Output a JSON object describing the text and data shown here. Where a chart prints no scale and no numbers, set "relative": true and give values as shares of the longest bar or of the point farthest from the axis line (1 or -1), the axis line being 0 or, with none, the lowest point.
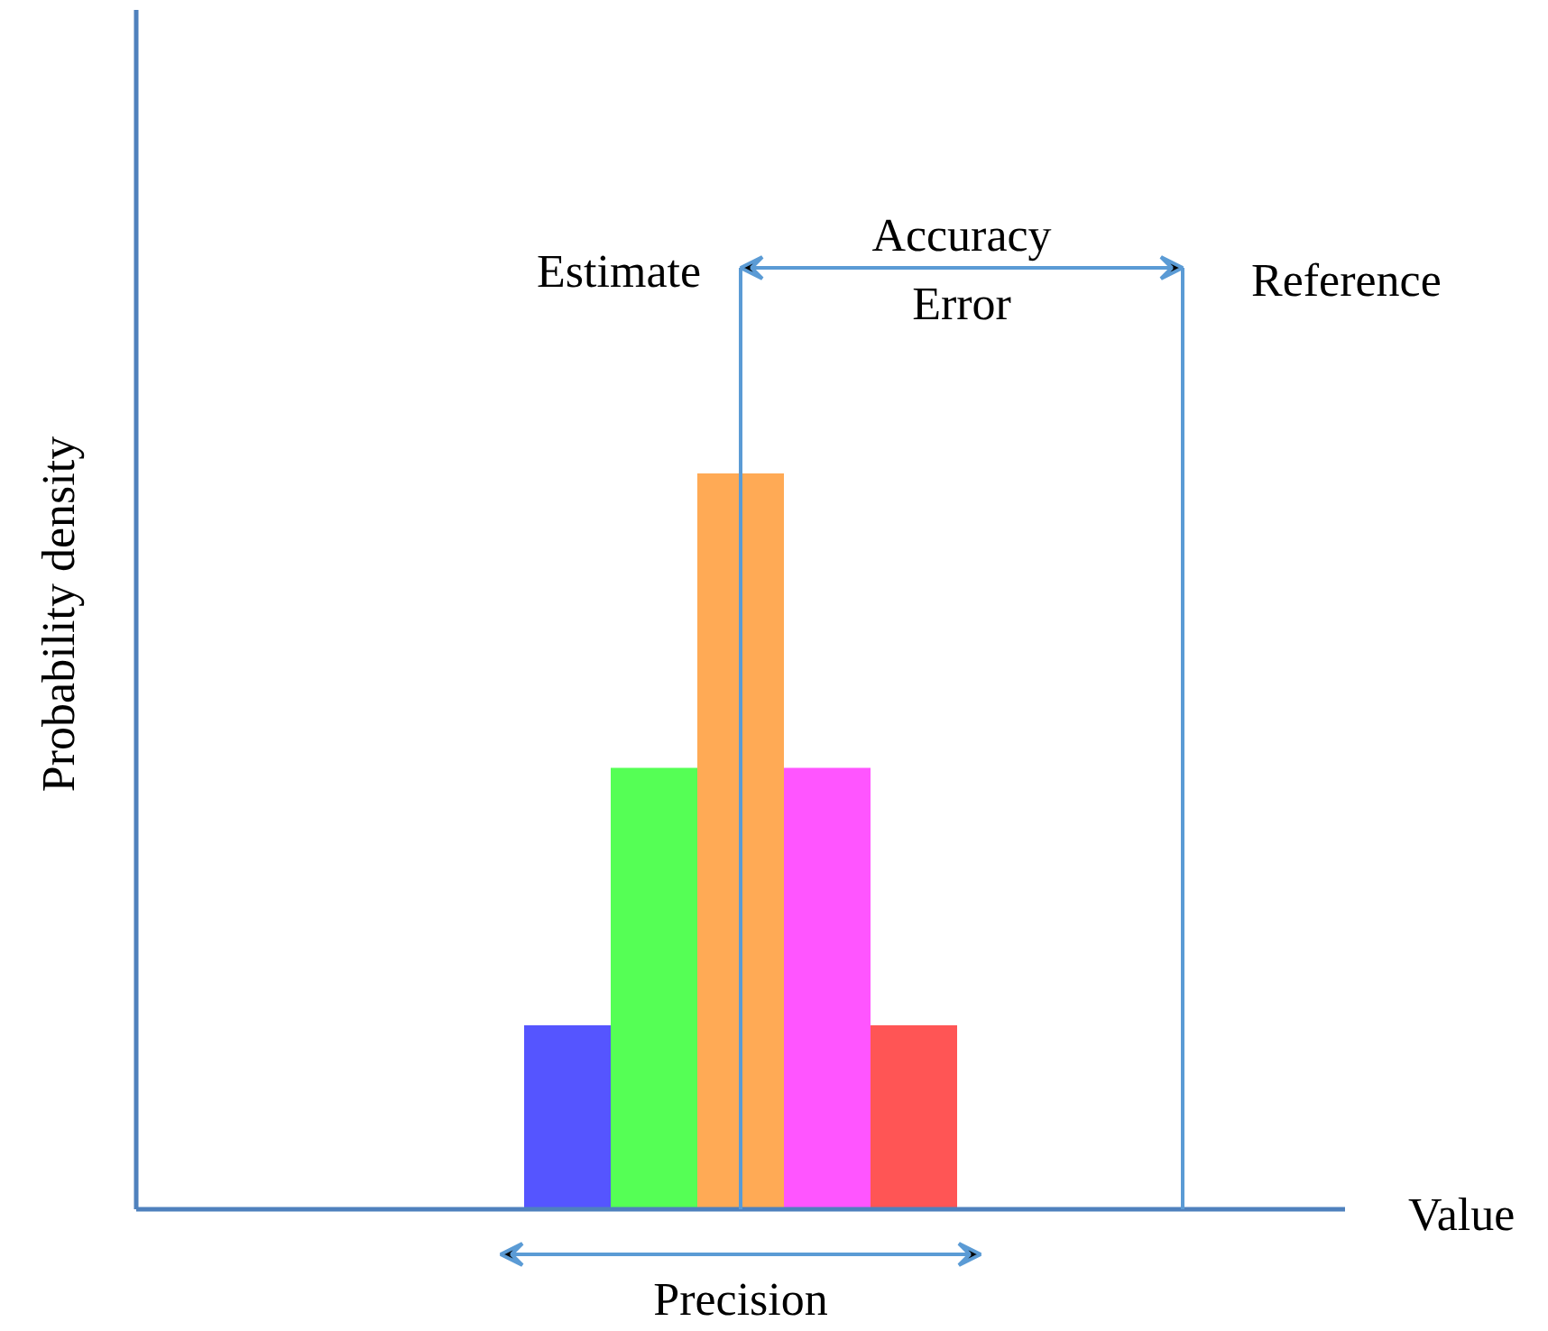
{
  "chart_data": {
    "type": "bar",
    "relative": true,
    "categories": [
      null,
      null,
      null,
      null,
      null
    ],
    "values": [
      0.25,
      0.6,
      1,
      0.6,
      0.25
    ],
    "colors": [
      "#5555ff",
      "#55ff55",
      "#ffaa55",
      "#ff55ff",
      "#ff5555"
    ],
    "annotations": [
      "Estimate",
      "Accuracy\nError",
      "Reference",
      "Precision",
      "Value",
      "Probability density"
    ]
  }
}
